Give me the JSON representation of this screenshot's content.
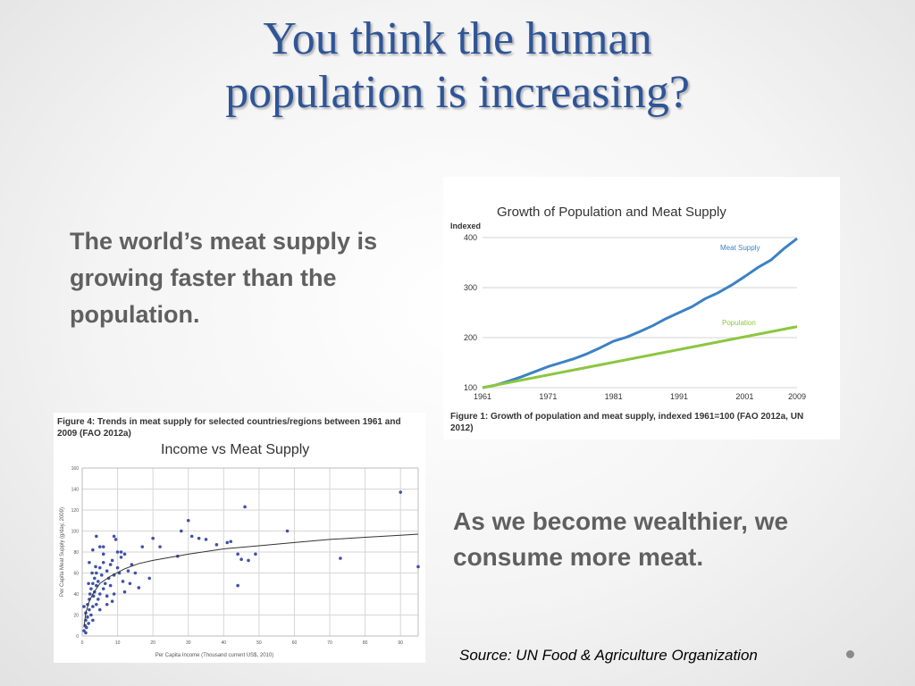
{
  "slide": {
    "title_line1": "You think the human",
    "title_line2": "population is increasing?",
    "text_top": "The world’s meat supply is growing faster than the population.",
    "text_bottom": "As we become wealthier, we consume more meat.",
    "source": "Source: UN Food & Agriculture Organization"
  },
  "colors": {
    "title": "#2f5597",
    "body_text": "#606060",
    "meat_series": "#3b82c4",
    "population_series": "#8cc63f",
    "scatter_point": "#3f51a8"
  },
  "figure1_caption": "Figure 1: Growth of population and meat supply, indexed 1961=100 (FAO 2012a, UN 2012)",
  "figure4_caption": "Figure 4: Trends in meat supply for selected countries/regions between 1961 and 2009 (FAO 2012a)",
  "chart_data": [
    {
      "type": "line",
      "title": "Growth of Population and Meat Supply",
      "ylabel": "Indexed",
      "xlabel": "",
      "x_ticks": [
        1961,
        1971,
        1981,
        1991,
        2001,
        2009
      ],
      "y_ticks": [
        100,
        200,
        300,
        400
      ],
      "xlim": [
        1961,
        2009
      ],
      "ylim": [
        100,
        400
      ],
      "grid": true,
      "series": [
        {
          "name": "Meat Supply",
          "x": [
            1961,
            1963,
            1965,
            1967,
            1969,
            1971,
            1973,
            1975,
            1977,
            1979,
            1981,
            1983,
            1985,
            1987,
            1989,
            1991,
            1993,
            1995,
            1997,
            1999,
            2001,
            2003,
            2005,
            2007,
            2009
          ],
          "values": [
            100,
            105,
            113,
            122,
            132,
            142,
            150,
            158,
            168,
            180,
            193,
            201,
            212,
            224,
            238,
            250,
            262,
            278,
            290,
            305,
            322,
            340,
            355,
            378,
            398
          ]
        },
        {
          "name": "Population",
          "x": [
            1961,
            2009
          ],
          "values": [
            100,
            222
          ]
        }
      ]
    },
    {
      "type": "scatter",
      "title": "Income vs Meat Supply",
      "xlabel": "Per Capita Income (Thousand current US$, 2010)",
      "ylabel": "Per Capita Meat Supply (g/day, 2009)",
      "x_ticks": [
        0,
        10,
        20,
        30,
        40,
        50,
        60,
        70,
        80,
        90
      ],
      "y_ticks": [
        0,
        20,
        40,
        60,
        80,
        100,
        120,
        140,
        160
      ],
      "xlim": [
        0,
        95
      ],
      "ylim": [
        0,
        160
      ],
      "grid": true,
      "points": [
        [
          0.5,
          5
        ],
        [
          0.8,
          10
        ],
        [
          1,
          15
        ],
        [
          1,
          22
        ],
        [
          1.2,
          8
        ],
        [
          1.5,
          30
        ],
        [
          1.5,
          18
        ],
        [
          1.8,
          12
        ],
        [
          2,
          25
        ],
        [
          2,
          35
        ],
        [
          2.2,
          40
        ],
        [
          2.5,
          20
        ],
        [
          2.5,
          45
        ],
        [
          3,
          28
        ],
        [
          3,
          50
        ],
        [
          3,
          15
        ],
        [
          3.2,
          38
        ],
        [
          3.5,
          55
        ],
        [
          3.5,
          42
        ],
        [
          4,
          30
        ],
        [
          4,
          48
        ],
        [
          4,
          60
        ],
        [
          4.5,
          35
        ],
        [
          4.5,
          52
        ],
        [
          5,
          40
        ],
        [
          5,
          65
        ],
        [
          5,
          25
        ],
        [
          5.5,
          58
        ],
        [
          6,
          45
        ],
        [
          6,
          70
        ],
        [
          6.5,
          50
        ],
        [
          7,
          62
        ],
        [
          7,
          38
        ],
        [
          7.5,
          55
        ],
        [
          8,
          68
        ],
        [
          8,
          48
        ],
        [
          8.5,
          72
        ],
        [
          9,
          58
        ],
        [
          9,
          40
        ],
        [
          10,
          65
        ],
        [
          10,
          80
        ],
        [
          10.5,
          60
        ],
        [
          11,
          75
        ],
        [
          11.5,
          52
        ],
        [
          12,
          78
        ],
        [
          13,
          62
        ],
        [
          14,
          68
        ],
        [
          2,
          70
        ],
        [
          3,
          82
        ],
        [
          4,
          95
        ],
        [
          5,
          85
        ],
        [
          6,
          78
        ],
        [
          9,
          95
        ],
        [
          11,
          80
        ],
        [
          15,
          60
        ],
        [
          17,
          85
        ],
        [
          19,
          55
        ],
        [
          20,
          93
        ],
        [
          22,
          85
        ],
        [
          27,
          76
        ],
        [
          28,
          100
        ],
        [
          30,
          110
        ],
        [
          31,
          95
        ],
        [
          33,
          93
        ],
        [
          35,
          92
        ],
        [
          38,
          87
        ],
        [
          41,
          89
        ],
        [
          42,
          90
        ],
        [
          44,
          78
        ],
        [
          44,
          48
        ],
        [
          45,
          73
        ],
        [
          46,
          123
        ],
        [
          47,
          72
        ],
        [
          49,
          78
        ],
        [
          58,
          100
        ],
        [
          73,
          74
        ],
        [
          90,
          137
        ],
        [
          95,
          66
        ],
        [
          1,
          3
        ],
        [
          0.5,
          28
        ],
        [
          1.8,
          50
        ],
        [
          2.8,
          60
        ],
        [
          3.8,
          66
        ],
        [
          7,
          30
        ],
        [
          8.5,
          33
        ],
        [
          12,
          42
        ],
        [
          13.5,
          50
        ],
        [
          16,
          46
        ],
        [
          6,
          85
        ],
        [
          9.5,
          92
        ]
      ],
      "trend": {
        "x": [
          0.5,
          1,
          2,
          3,
          5,
          8,
          12,
          16,
          20,
          25,
          30,
          40,
          50,
          60,
          70,
          80,
          90,
          95
        ],
        "y": [
          8,
          22,
          33,
          40,
          50,
          57,
          64,
          69,
          72,
          75,
          78,
          83,
          86,
          89,
          92,
          94,
          96,
          97
        ]
      }
    }
  ]
}
